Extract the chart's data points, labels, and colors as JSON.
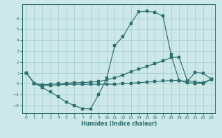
{
  "xlabel": "Humidex (Indice chaleur)",
  "background_color": "#cce8e8",
  "grid_color": "#aad0d0",
  "line_color": "#2d6e6e",
  "xlim": [
    -0.5,
    23.5
  ],
  "ylim": [
    -2.7,
    7.3
  ],
  "xticks": [
    0,
    1,
    2,
    3,
    4,
    5,
    6,
    7,
    8,
    9,
    10,
    11,
    12,
    13,
    14,
    15,
    16,
    17,
    18,
    19,
    20,
    21,
    22,
    23
  ],
  "yticks": [
    -2,
    -1,
    0,
    1,
    2,
    3,
    4,
    5,
    6
  ],
  "line1_x": [
    0,
    1,
    2,
    3,
    4,
    5,
    6,
    7,
    8,
    9,
    10,
    11,
    12,
    13,
    14,
    15,
    16,
    17,
    18,
    19,
    20,
    21,
    22,
    23
  ],
  "line1_y": [
    1.0,
    0.05,
    -0.35,
    -0.75,
    -1.2,
    -1.7,
    -2.0,
    -2.3,
    -2.3,
    -1.0,
    0.5,
    3.5,
    4.3,
    5.55,
    6.6,
    6.65,
    6.55,
    6.2,
    2.65,
    0.3,
    0.2,
    1.05,
    0.95,
    0.42
  ],
  "line2_x": [
    0,
    1,
    2,
    3,
    4,
    5,
    6,
    7,
    8,
    9,
    10,
    11,
    12,
    13,
    14,
    15,
    16,
    17,
    18,
    19,
    20,
    21,
    22,
    23
  ],
  "line2_y": [
    1.0,
    0.05,
    -0.1,
    -0.05,
    0.0,
    0.05,
    0.1,
    0.1,
    0.15,
    0.2,
    0.35,
    0.55,
    0.8,
    1.1,
    1.35,
    1.6,
    1.85,
    2.1,
    2.4,
    2.45,
    0.3,
    0.15,
    0.1,
    0.42
  ],
  "line3_x": [
    0,
    1,
    2,
    3,
    4,
    5,
    6,
    7,
    8,
    9,
    10,
    11,
    12,
    13,
    14,
    15,
    16,
    17,
    18,
    19,
    20,
    21,
    22,
    23
  ],
  "line3_y": [
    1.0,
    0.05,
    -0.2,
    -0.15,
    -0.1,
    -0.05,
    -0.05,
    -0.05,
    -0.05,
    -0.05,
    -0.05,
    -0.05,
    0.0,
    0.05,
    0.1,
    0.15,
    0.2,
    0.25,
    0.3,
    0.3,
    0.1,
    0.05,
    0.0,
    0.42
  ]
}
